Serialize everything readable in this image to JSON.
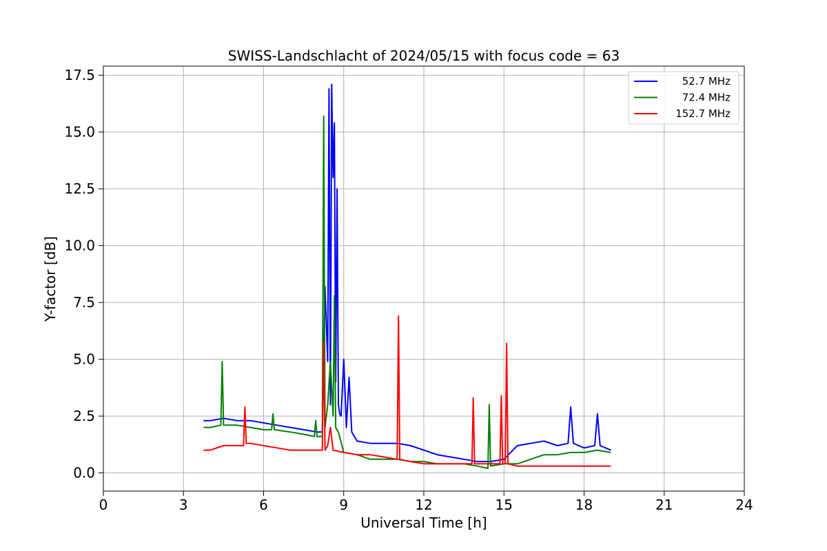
{
  "chart_data": {
    "type": "line",
    "title": "SWISS-Landschlacht of 2024/05/15 with focus code = 63",
    "xlabel": "Universal Time [h]",
    "ylabel": "Y-factor [dB]",
    "xlim": [
      0,
      24
    ],
    "ylim": [
      -0.8,
      17.9
    ],
    "xticks": [
      0,
      3,
      6,
      9,
      12,
      15,
      18,
      21,
      24
    ],
    "xtick_labels": [
      "0",
      "3",
      "6",
      "9",
      "12",
      "15",
      "18",
      "21",
      "24"
    ],
    "yticks": [
      0,
      2.5,
      5,
      7.5,
      10,
      12.5,
      15,
      17.5
    ],
    "ytick_labels": [
      "0.0",
      "2.5",
      "5.0",
      "7.5",
      "10.0",
      "12.5",
      "15.0",
      "17.5"
    ],
    "grid": true,
    "legend_position": "top-right",
    "series": [
      {
        "name": "52.7 MHz",
        "color": "#0000ff",
        "x": [
          3.75,
          4.0,
          4.5,
          5.0,
          5.5,
          6.0,
          6.5,
          7.0,
          7.5,
          8.0,
          8.2,
          8.3,
          8.4,
          8.45,
          8.5,
          8.55,
          8.6,
          8.65,
          8.7,
          8.75,
          8.8,
          8.85,
          8.9,
          9.0,
          9.1,
          9.2,
          9.3,
          9.5,
          10.0,
          10.5,
          11.0,
          11.5,
          12.0,
          12.5,
          13.0,
          13.5,
          14.0,
          14.5,
          15.0,
          15.5,
          16.0,
          16.5,
          17.0,
          17.4,
          17.5,
          17.6,
          18.0,
          18.4,
          18.5,
          18.6,
          19.0
        ],
        "values": [
          2.3,
          2.3,
          2.4,
          2.3,
          2.3,
          2.2,
          2.1,
          2.0,
          1.9,
          1.8,
          1.8,
          8.2,
          4.9,
          16.9,
          3.0,
          17.1,
          13.0,
          15.4,
          4.0,
          12.5,
          3.0,
          2.6,
          2.5,
          5.0,
          2.0,
          4.2,
          1.8,
          1.4,
          1.3,
          1.3,
          1.3,
          1.2,
          1.0,
          0.8,
          0.7,
          0.6,
          0.5,
          0.5,
          0.6,
          1.2,
          1.3,
          1.4,
          1.2,
          1.3,
          2.9,
          1.3,
          1.1,
          1.2,
          2.6,
          1.2,
          1.0
        ]
      },
      {
        "name": "72.4 MHz",
        "color": "#008000",
        "x": [
          3.75,
          4.0,
          4.4,
          4.45,
          4.5,
          5.0,
          5.5,
          6.0,
          6.3,
          6.35,
          6.4,
          7.0,
          7.5,
          7.9,
          7.95,
          8.0,
          8.2,
          8.25,
          8.3,
          8.4,
          8.5,
          8.6,
          8.65,
          8.7,
          8.8,
          9.0,
          9.5,
          10.0,
          10.5,
          11.0,
          11.5,
          12.0,
          12.5,
          13.0,
          13.5,
          14.0,
          14.4,
          14.45,
          14.5,
          15.0,
          15.5,
          16.0,
          16.5,
          17.0,
          17.5,
          18.0,
          18.5,
          19.0
        ],
        "values": [
          2.0,
          2.0,
          2.1,
          4.9,
          2.1,
          2.1,
          2.0,
          1.9,
          1.9,
          2.6,
          1.9,
          1.8,
          1.7,
          1.6,
          2.3,
          1.6,
          1.6,
          15.7,
          2.0,
          3.0,
          4.9,
          2.5,
          7.8,
          2.0,
          1.8,
          0.9,
          0.8,
          0.6,
          0.6,
          0.6,
          0.5,
          0.5,
          0.4,
          0.4,
          0.4,
          0.3,
          0.2,
          3.0,
          0.3,
          0.4,
          0.4,
          0.6,
          0.8,
          0.8,
          0.9,
          0.9,
          1.0,
          0.9
        ]
      },
      {
        "name": "152.7 MHz",
        "color": "#ff0000",
        "x": [
          3.75,
          4.0,
          4.5,
          5.0,
          5.25,
          5.3,
          5.35,
          5.5,
          6.0,
          6.5,
          7.0,
          7.5,
          8.0,
          8.2,
          8.25,
          8.3,
          8.4,
          8.5,
          8.6,
          9.0,
          9.5,
          10.0,
          10.5,
          11.0,
          11.05,
          11.1,
          11.5,
          12.0,
          12.5,
          13.0,
          13.5,
          13.8,
          13.85,
          13.9,
          14.0,
          14.5,
          14.85,
          14.9,
          14.95,
          15.05,
          15.1,
          15.15,
          15.5,
          16.0,
          16.5,
          17.0,
          17.5,
          18.0,
          18.5,
          19.0
        ],
        "values": [
          1.0,
          1.0,
          1.2,
          1.2,
          1.2,
          2.9,
          1.3,
          1.3,
          1.2,
          1.1,
          1.0,
          1.0,
          1.0,
          1.0,
          5.8,
          1.0,
          1.2,
          2.0,
          1.0,
          0.9,
          0.8,
          0.8,
          0.7,
          0.6,
          6.9,
          0.6,
          0.5,
          0.4,
          0.4,
          0.4,
          0.4,
          0.4,
          3.3,
          0.4,
          0.4,
          0.4,
          0.4,
          3.4,
          0.4,
          0.4,
          5.7,
          0.4,
          0.3,
          0.3,
          0.3,
          0.3,
          0.3,
          0.3,
          0.3,
          0.3
        ]
      }
    ]
  }
}
